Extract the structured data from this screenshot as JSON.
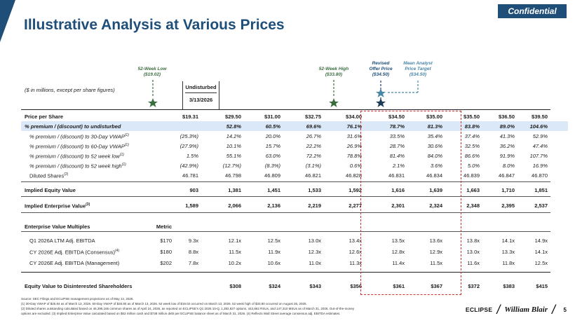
{
  "header": {
    "badge": "Confidential",
    "title": "Illustrative Analysis at Various Prices"
  },
  "callouts": {
    "low": [
      "52-Week Low",
      "($19.02)"
    ],
    "high": [
      "52-Week High",
      "($33.80)"
    ],
    "offer": [
      "Revised",
      "Offer Price",
      "($34.50)"
    ],
    "target": [
      "Mean Analyst",
      "Price Target",
      "($34.50)"
    ]
  },
  "table": {
    "units_note": "($ in millions, except per share figures)",
    "undisturbed_label": "Undisturbed",
    "undisturbed_date": "3/13/2026",
    "rows": [
      {
        "label": "Price per Share",
        "sup": "",
        "style": "bold",
        "values": [
          "$19.31",
          "$29.50",
          "$31.00",
          "$32.75",
          "$34.00",
          "$34.50",
          "$35.00",
          "$35.50",
          "$36.50",
          "$39.50"
        ]
      },
      {
        "label": "% premium / (discount) to undisturbed",
        "sup": "",
        "style": "bold ital shaded",
        "values": [
          "",
          "52.8%",
          "60.5%",
          "69.6%",
          "76.1%",
          "78.7%",
          "81.3%",
          "83.8%",
          "89.0%",
          "104.6%"
        ]
      },
      {
        "label": "% premium / (discount) to 30-Day VWAP",
        "sup": "(1)",
        "style": "ital indent",
        "values": [
          "(25.3%)",
          "14.2%",
          "20.0%",
          "26.7%",
          "31.6%",
          "33.5%",
          "35.4%",
          "37.4%",
          "41.3%",
          "52.9%"
        ]
      },
      {
        "label": "% premium / (discount) to 60-Day VWAP",
        "sup": "(1)",
        "style": "ital indent",
        "values": [
          "(27.9%)",
          "10.1%",
          "15.7%",
          "22.2%",
          "26.9%",
          "28.7%",
          "30.6%",
          "32.5%",
          "36.2%",
          "47.4%"
        ]
      },
      {
        "label": "% premium / (discount) to 52 week low",
        "sup": "(1)",
        "style": "ital indent",
        "values": [
          "1.5%",
          "55.1%",
          "63.0%",
          "72.2%",
          "78.8%",
          "81.4%",
          "84.0%",
          "86.6%",
          "91.9%",
          "107.7%"
        ]
      },
      {
        "label": "% premium / (discount) to 52 week high",
        "sup": "(1)",
        "style": "ital indent",
        "values": [
          "(42.9%)",
          "(12.7%)",
          "(8.3%)",
          "(3.1%)",
          "0.6%",
          "2.1%",
          "3.6%",
          "5.0%",
          "8.0%",
          "16.9%"
        ]
      },
      {
        "label": "Diluted Shares",
        "sup": "(2)",
        "style": "indent",
        "values": [
          "46.781",
          "46.798",
          "46.809",
          "46.821",
          "46.828",
          "46.831",
          "46.834",
          "46.839",
          "46.847",
          "46.870"
        ]
      },
      {
        "label": "Implied Equity Value",
        "sup": "",
        "style": "bold",
        "values": [
          "903",
          "1,381",
          "1,451",
          "1,533",
          "1,592",
          "1,616",
          "1,639",
          "1,663",
          "1,710",
          "1,851"
        ]
      },
      {
        "label": "Implied Enterprise Value",
        "sup": "(3)",
        "style": "bold",
        "values": [
          "1,589",
          "2,066",
          "2,136",
          "2,219",
          "2,277",
          "2,301",
          "2,324",
          "2,348",
          "2,395",
          "2,537"
        ]
      }
    ],
    "multiples_header": "Enterprise Value Multiples",
    "metric_header": "Metric",
    "multiples": [
      {
        "label": "Q1 2026A LTM Adj. EBITDA",
        "sup": "",
        "metric": "$170",
        "values": [
          "9.3x",
          "12.1x",
          "12.5x",
          "13.0x",
          "13.4x",
          "13.5x",
          "13.6x",
          "13.8x",
          "14.1x",
          "14.9x"
        ]
      },
      {
        "label": "CY 2026E Adj. EBITDA (Consensus)",
        "sup": "(4)",
        "metric": "$180",
        "values": [
          "8.8x",
          "11.5x",
          "11.9x",
          "12.3x",
          "12.6x",
          "12.8x",
          "12.9x",
          "13.0x",
          "13.3x",
          "14.1x"
        ]
      },
      {
        "label": "CY 2026E Adj. EBITDA (Management)",
        "sup": "",
        "metric": "$202",
        "values": [
          "7.8x",
          "10.2x",
          "10.6x",
          "11.0x",
          "11.3x",
          "11.4x",
          "11.5x",
          "11.6x",
          "11.8x",
          "12.5x"
        ]
      }
    ],
    "disinterested": {
      "label": "Equity Value to Disinterested Shareholders",
      "values": [
        "",
        "$308",
        "$324",
        "$343",
        "$356",
        "$361",
        "$367",
        "$372",
        "$383",
        "$415"
      ]
    }
  },
  "footnotes": [
    "Source: SEC Filings and ECLIPSE management projections as of May 14, 2026.",
    "(1) 30-Day VWAP of $25.84 as of March 13, 2026. 60-Day VWAP of $26.80 as of March 13, 2026. 52 week low of $19.02 occurred on March 13, 2026. 52 week high of $33.80 occurred on August 26, 2025.",
    "(2) Diluted shares outstanding calculated based on 46,395,165 common shares as of April 24, 2026, as reported on ECLIPSE's Q1 2026 10-Q, 1,382,827 options, 442,862 RSUs, and 147,310 MSUs as of March 31, 2026. Out-of-the-money",
    "options are excluded. (3) Implied Enterprise Value calculated based on $53 million cash and $738 million debt per ECLIPSE balance sheet as of March 31, 2026. (4) Reflects Wall Street average consensus adj. EBITDA estimates."
  ],
  "footer": {
    "logo_eclipse": "ECLIPSE",
    "logo_wb": "William Blair",
    "page": "5"
  },
  "colors": {
    "brand": "#1f4e79",
    "highlight_row": "#dbe8f7",
    "dash_box": "#d0312d",
    "star_low": "#3b6e3f",
    "star_high": "#3b6e3f",
    "star_offer": "#1f3b5a",
    "star_target": "#4a86a8"
  }
}
